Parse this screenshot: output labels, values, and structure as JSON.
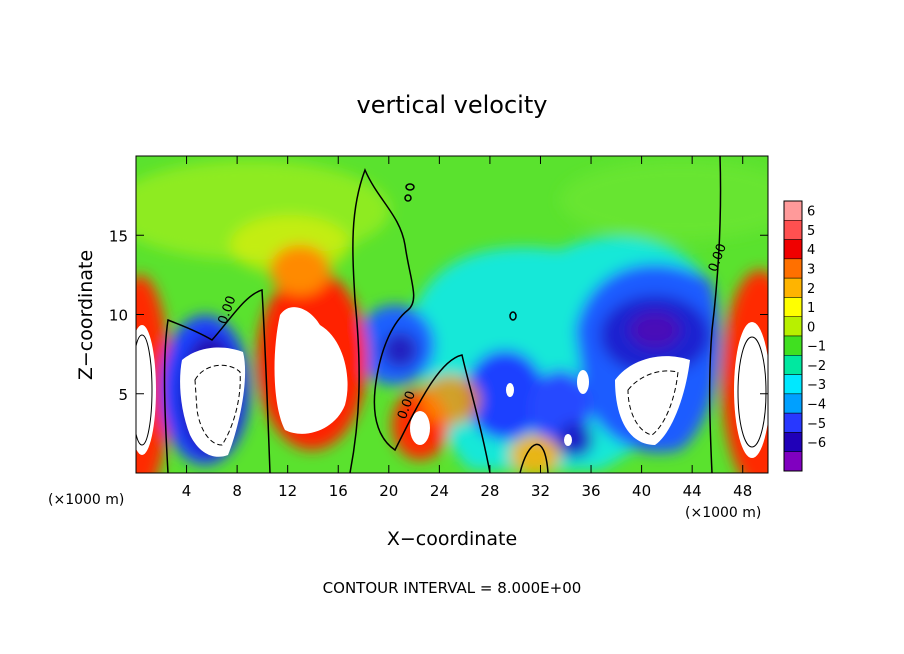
{
  "chart_data": {
    "type": "heatmap",
    "title": "vertical velocity",
    "xlabel": "X−coordinate",
    "ylabel": "Z−coordinate",
    "x_unit_left": "(×1000 m)",
    "x_unit_right": "(×1000 m)",
    "footer": "CONTOUR INTERVAL = 8.000E+00",
    "xlim": [
      0,
      50
    ],
    "ylim": [
      0,
      20
    ],
    "x_ticks": [
      4,
      8,
      12,
      16,
      20,
      24,
      28,
      32,
      36,
      40,
      44,
      48
    ],
    "x_tick_labels": [
      "4",
      "8",
      "12",
      "16",
      "20",
      "24",
      "28",
      "32",
      "36",
      "40",
      "44",
      "48"
    ],
    "y_ticks": [
      5,
      10,
      15
    ],
    "y_tick_labels": [
      "5",
      "10",
      "15"
    ],
    "contour_labels": [
      {
        "text": "0.00",
        "x": 7.5,
        "y": 10.2
      },
      {
        "text": "0.00",
        "x": 21.7,
        "y": 4.2
      },
      {
        "text": "0.00",
        "x": 46.3,
        "y": 13.5
      }
    ],
    "colorbar": {
      "levels": [
        6,
        5,
        4,
        3,
        2,
        1,
        0,
        -1,
        -2,
        -3,
        -4,
        -5,
        -6
      ],
      "tick_labels": [
        "6",
        "5",
        "4",
        "3",
        "2",
        "1",
        "0",
        "−1",
        "−2",
        "−3",
        "−4",
        "−5",
        "−6"
      ],
      "colors": [
        "#ff9a9a",
        "#ff5050",
        "#f00000",
        "#ff7000",
        "#ffb400",
        "#ffff00",
        "#b8f000",
        "#40e020",
        "#00e8a0",
        "#00e8ff",
        "#00a0ff",
        "#2838ff",
        "#2000b8",
        "#8000c0"
      ]
    },
    "features": [
      {
        "kind": "updraft",
        "x": 0.5,
        "y": 5.5,
        "rx": 1.6,
        "ry": 5.2,
        "peak": 8
      },
      {
        "kind": "downdraft",
        "x": 5.8,
        "y": 5.0,
        "rx": 3.0,
        "ry": 4.8,
        "peak": -8
      },
      {
        "kind": "updraft",
        "x": 13.5,
        "y": 6.5,
        "rx": 3.5,
        "ry": 5.5,
        "peak": 8
      },
      {
        "kind": "downdraft",
        "x": 17.8,
        "y": 8.0,
        "rx": 2.6,
        "ry": 3.2,
        "peak": -4
      },
      {
        "kind": "updraft",
        "x": 22.0,
        "y": 3.0,
        "rx": 1.4,
        "ry": 2.0,
        "peak": 7
      },
      {
        "kind": "downdraft",
        "x": 29.5,
        "y": 5.2,
        "rx": 2.5,
        "ry": 3.2,
        "peak": -7
      },
      {
        "kind": "downdraft",
        "x": 34.0,
        "y": 2.5,
        "rx": 1.2,
        "ry": 1.5,
        "peak": -7
      },
      {
        "kind": "downdraft",
        "x": 40.5,
        "y": 7.5,
        "rx": 5.0,
        "ry": 6.0,
        "peak": -8
      },
      {
        "kind": "updraft",
        "x": 49.0,
        "y": 5.5,
        "rx": 2.3,
        "ry": 5.5,
        "peak": 8
      }
    ]
  }
}
